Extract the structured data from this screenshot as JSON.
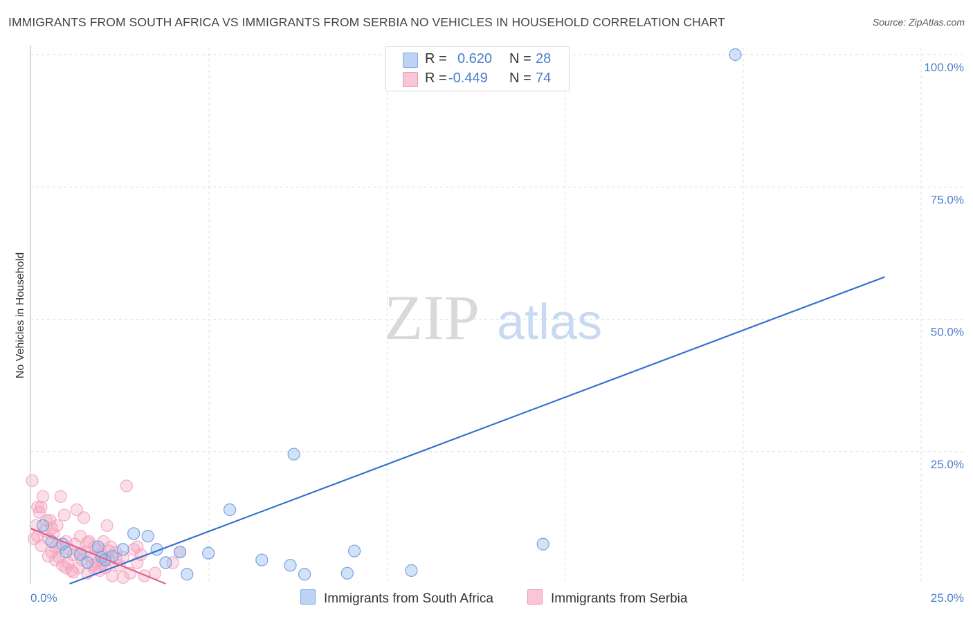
{
  "title": "IMMIGRANTS FROM SOUTH AFRICA VS IMMIGRANTS FROM SERBIA NO VEHICLES IN HOUSEHOLD CORRELATION CHART",
  "source": "Source: ZipAtlas.com",
  "watermark": {
    "zip": "ZIP",
    "atlas": "atlas"
  },
  "legend": {
    "rows": [
      {
        "r_label": "R =",
        "r_value": "0.620",
        "n_label": "N =",
        "n_value": "28"
      },
      {
        "r_label": "R =",
        "r_value": "-0.449",
        "n_label": "N =",
        "n_value": "74"
      }
    ]
  },
  "bottom_legend": {
    "series1": "Immigrants from South Africa",
    "series2": "Immigrants from Serbia"
  },
  "chart_data": {
    "type": "scatter",
    "title": "IMMIGRANTS FROM SOUTH AFRICA VS IMMIGRANTS FROM SERBIA NO VEHICLES IN HOUSEHOLD CORRELATION CHART",
    "xlabel": "",
    "ylabel": "No Vehicles in Household",
    "xlim": [
      0,
      25
    ],
    "ylim": [
      0,
      100
    ],
    "x_tick_labels": [
      "0.0%",
      "25.0%"
    ],
    "y_ticks": [
      25,
      50,
      75,
      100
    ],
    "y_tick_labels": [
      "25.0%",
      "50.0%",
      "75.0%",
      "100.0%"
    ],
    "grid": true,
    "colors": {
      "series1": "#90b8ec",
      "series1_line": "#3472d0",
      "series2": "#f4a3bd",
      "series2_line": "#e5608e",
      "tick": "#4a7ecb",
      "grid": "#dddddd"
    },
    "series": [
      {
        "name": "Immigrants from South Africa",
        "r": 0.62,
        "n": 28,
        "trend": {
          "x": [
            1.1,
            24.0
          ],
          "y": [
            0.0,
            58.0
          ]
        },
        "points": [
          {
            "x": 0.35,
            "y": 11.0
          },
          {
            "x": 0.6,
            "y": 8.0
          },
          {
            "x": 1.0,
            "y": 6.0
          },
          {
            "x": 1.4,
            "y": 5.5
          },
          {
            "x": 1.9,
            "y": 7.0
          },
          {
            "x": 2.0,
            "y": 5.0
          },
          {
            "x": 2.1,
            "y": 4.5
          },
          {
            "x": 2.6,
            "y": 6.5
          },
          {
            "x": 2.9,
            "y": 9.5
          },
          {
            "x": 3.3,
            "y": 9.0
          },
          {
            "x": 3.55,
            "y": 6.5
          },
          {
            "x": 3.8,
            "y": 4.0
          },
          {
            "x": 4.2,
            "y": 6.0
          },
          {
            "x": 4.4,
            "y": 1.8
          },
          {
            "x": 5.0,
            "y": 5.8
          },
          {
            "x": 5.6,
            "y": 14.0
          },
          {
            "x": 6.5,
            "y": 4.5
          },
          {
            "x": 7.3,
            "y": 3.5
          },
          {
            "x": 7.4,
            "y": 24.5
          },
          {
            "x": 7.7,
            "y": 1.8
          },
          {
            "x": 8.9,
            "y": 2.0
          },
          {
            "x": 9.1,
            "y": 6.2
          },
          {
            "x": 10.7,
            "y": 2.5
          },
          {
            "x": 14.4,
            "y": 7.5
          },
          {
            "x": 19.8,
            "y": 100.0
          },
          {
            "x": 1.6,
            "y": 4.0
          },
          {
            "x": 2.3,
            "y": 5.2
          },
          {
            "x": 0.9,
            "y": 7.5
          }
        ]
      },
      {
        "name": "Immigrants from Serbia",
        "r": -0.449,
        "n": 74,
        "trend": {
          "x": [
            0.0,
            3.8
          ],
          "y": [
            10.5,
            0.0
          ]
        },
        "points": [
          {
            "x": 0.05,
            "y": 19.5
          },
          {
            "x": 0.15,
            "y": 11.0
          },
          {
            "x": 0.2,
            "y": 9.0
          },
          {
            "x": 0.25,
            "y": 13.5
          },
          {
            "x": 0.3,
            "y": 14.5
          },
          {
            "x": 0.35,
            "y": 16.5
          },
          {
            "x": 0.4,
            "y": 10.0
          },
          {
            "x": 0.5,
            "y": 8.5
          },
          {
            "x": 0.55,
            "y": 12.0
          },
          {
            "x": 0.6,
            "y": 6.0
          },
          {
            "x": 0.65,
            "y": 9.5
          },
          {
            "x": 0.7,
            "y": 7.0
          },
          {
            "x": 0.75,
            "y": 11.0
          },
          {
            "x": 0.8,
            "y": 5.0
          },
          {
            "x": 0.85,
            "y": 16.5
          },
          {
            "x": 0.9,
            "y": 3.5
          },
          {
            "x": 0.95,
            "y": 13.0
          },
          {
            "x": 1.0,
            "y": 8.0
          },
          {
            "x": 1.05,
            "y": 4.0
          },
          {
            "x": 1.1,
            "y": 6.5
          },
          {
            "x": 1.15,
            "y": 2.5
          },
          {
            "x": 1.2,
            "y": 5.5
          },
          {
            "x": 1.25,
            "y": 7.5
          },
          {
            "x": 1.3,
            "y": 14.0
          },
          {
            "x": 1.35,
            "y": 3.0
          },
          {
            "x": 1.4,
            "y": 9.0
          },
          {
            "x": 1.45,
            "y": 4.5
          },
          {
            "x": 1.5,
            "y": 12.5
          },
          {
            "x": 1.55,
            "y": 6.0
          },
          {
            "x": 1.6,
            "y": 2.0
          },
          {
            "x": 1.65,
            "y": 8.0
          },
          {
            "x": 1.7,
            "y": 5.0
          },
          {
            "x": 1.75,
            "y": 3.5
          },
          {
            "x": 1.8,
            "y": 7.0
          },
          {
            "x": 1.85,
            "y": 4.0
          },
          {
            "x": 1.9,
            "y": 6.5
          },
          {
            "x": 1.95,
            "y": 2.5
          },
          {
            "x": 2.0,
            "y": 5.5
          },
          {
            "x": 2.05,
            "y": 8.0
          },
          {
            "x": 2.1,
            "y": 3.0
          },
          {
            "x": 2.15,
            "y": 11.0
          },
          {
            "x": 2.2,
            "y": 4.5
          },
          {
            "x": 2.25,
            "y": 7.0
          },
          {
            "x": 2.3,
            "y": 1.5
          },
          {
            "x": 2.4,
            "y": 6.0
          },
          {
            "x": 2.5,
            "y": 3.5
          },
          {
            "x": 2.6,
            "y": 5.0
          },
          {
            "x": 2.7,
            "y": 18.5
          },
          {
            "x": 2.8,
            "y": 2.0
          },
          {
            "x": 2.9,
            "y": 6.5
          },
          {
            "x": 3.0,
            "y": 4.0
          },
          {
            "x": 3.1,
            "y": 5.5
          },
          {
            "x": 3.2,
            "y": 1.5
          },
          {
            "x": 3.5,
            "y": 2.0
          },
          {
            "x": 4.0,
            "y": 4.0
          },
          {
            "x": 4.2,
            "y": 6.0
          },
          {
            "x": 0.1,
            "y": 8.5
          },
          {
            "x": 0.2,
            "y": 14.5
          },
          {
            "x": 0.45,
            "y": 12.0
          },
          {
            "x": 0.6,
            "y": 10.5
          },
          {
            "x": 0.7,
            "y": 4.5
          },
          {
            "x": 0.8,
            "y": 6.8
          },
          {
            "x": 1.0,
            "y": 3.0
          },
          {
            "x": 1.2,
            "y": 2.2
          },
          {
            "x": 1.4,
            "y": 5.8
          },
          {
            "x": 1.6,
            "y": 7.8
          },
          {
            "x": 1.8,
            "y": 2.8
          },
          {
            "x": 2.0,
            "y": 3.8
          },
          {
            "x": 2.2,
            "y": 6.2
          },
          {
            "x": 2.4,
            "y": 4.8
          },
          {
            "x": 2.6,
            "y": 1.2
          },
          {
            "x": 3.0,
            "y": 7.0
          },
          {
            "x": 0.3,
            "y": 7.2
          },
          {
            "x": 0.5,
            "y": 5.2
          }
        ]
      }
    ]
  }
}
